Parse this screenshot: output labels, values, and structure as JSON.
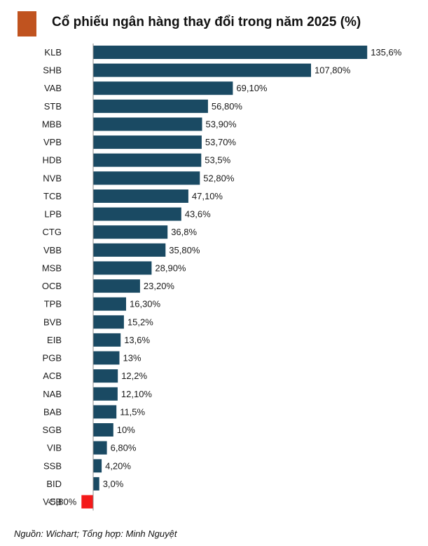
{
  "colors": {
    "title_marker": "#c0531f",
    "bar_positive": "#1a4a63",
    "bar_negative": "#f41a1a",
    "axis": "#8a8a8a"
  },
  "source": "Nguồn: Wichart; Tổng hợp: Minh Nguyệt",
  "chart_data": {
    "type": "bar",
    "orientation": "horizontal",
    "title": "Cổ phiếu ngân hàng thay đổi trong năm 2025 (%)",
    "xlabel": "",
    "ylabel": "",
    "unit": "%",
    "grid": false,
    "legend": "none",
    "xlim": [
      -5.8,
      135.6
    ],
    "categories": [
      "KLB",
      "SHB",
      "VAB",
      "STB",
      "MBB",
      "VPB",
      "HDB",
      "NVB",
      "TCB",
      "LPB",
      "CTG",
      "VBB",
      "MSB",
      "OCB",
      "TPB",
      "BVB",
      "EIB",
      "PGB",
      "ACB",
      "NAB",
      "BAB",
      "SGB",
      "VIB",
      "SSB",
      "BID",
      "VCB"
    ],
    "values": [
      135.6,
      107.8,
      69.1,
      56.8,
      53.9,
      53.7,
      53.5,
      52.8,
      47.1,
      43.6,
      36.8,
      35.8,
      28.9,
      23.2,
      16.3,
      15.2,
      13.6,
      13.0,
      12.2,
      12.1,
      11.5,
      10.0,
      6.8,
      4.2,
      3.0,
      -5.8
    ],
    "data_labels": [
      "135,6%",
      "107,80%",
      "69,10%",
      "56,80%",
      "53,90%",
      "53,70%",
      "53,5%",
      "52,80%",
      "47,10%",
      "43,6%",
      "36,8%",
      "35,80%",
      "28,90%",
      "23,20%",
      "16,30%",
      "15,2%",
      "13,6%",
      "13%",
      "12,2%",
      "12,10%",
      "11,5%",
      "10%",
      "6,80%",
      "4,20%",
      "3,0%",
      "-5,80%"
    ]
  }
}
